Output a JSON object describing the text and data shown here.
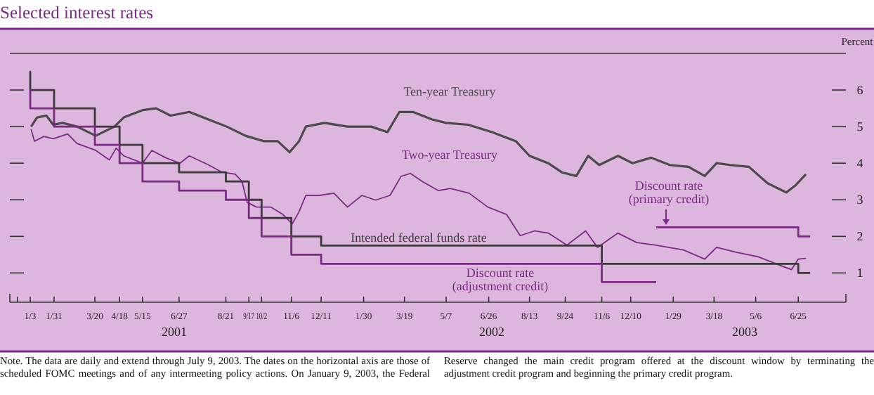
{
  "chart_data": {
    "type": "line",
    "title": "Selected interest rates",
    "ylabel": "Percent",
    "xlim": [
      "2000-12-10",
      "2003-08-20"
    ],
    "ylim": [
      0.2,
      7
    ],
    "yticks": [
      1,
      2,
      3,
      4,
      5,
      6
    ],
    "xticks": [
      {
        "value": "2000-12-19",
        "label": null
      },
      {
        "value": "2001-01-03",
        "label": "1/3"
      },
      {
        "value": "2001-01-31",
        "label": "1/31"
      },
      {
        "value": "2001-03-20",
        "label": "3/20"
      },
      {
        "value": "2001-04-18",
        "label": "4/18"
      },
      {
        "value": "2001-05-15",
        "label": "5/15"
      },
      {
        "value": "2001-06-27",
        "label": "6/27"
      },
      {
        "value": "2001-08-21",
        "label": "8/21"
      },
      {
        "value": "2001-09-17",
        "label": "9/17"
      },
      {
        "value": "2001-10-02",
        "label": "10/2"
      },
      {
        "value": "2001-11-06",
        "label": "11/6"
      },
      {
        "value": "2001-12-11",
        "label": "12/11"
      },
      {
        "value": "2002-01-30",
        "label": "1/30"
      },
      {
        "value": "2002-03-19",
        "label": "3/19"
      },
      {
        "value": "2002-05-07",
        "label": "5/7"
      },
      {
        "value": "2002-06-26",
        "label": "6/26"
      },
      {
        "value": "2002-08-13",
        "label": "8/13"
      },
      {
        "value": "2002-09-24",
        "label": "9/24"
      },
      {
        "value": "2002-11-06",
        "label": "11/6"
      },
      {
        "value": "2002-12-10",
        "label": "12/10"
      },
      {
        "value": "2003-01-29",
        "label": "1/29"
      },
      {
        "value": "2003-03-18",
        "label": "3/18"
      },
      {
        "value": "2003-05-06",
        "label": "5/6"
      },
      {
        "value": "2003-06-25",
        "label": "6/25"
      }
    ],
    "grid": false,
    "legend": false,
    "series": [
      {
        "name": "Ten-year Treasury",
        "type": "line",
        "color": "#4a4a4a",
        "x": [
          "2001-01-04",
          "2001-01-11",
          "2001-01-22",
          "2001-01-30",
          "2001-02-10",
          "2001-02-27",
          "2001-03-21",
          "2001-04-12",
          "2001-04-23",
          "2001-05-15",
          "2001-05-31",
          "2001-06-17",
          "2001-07-09",
          "2001-07-31",
          "2001-08-22",
          "2001-09-13",
          "2001-10-05",
          "2001-10-21",
          "2001-11-04",
          "2001-11-15",
          "2001-11-23",
          "2001-12-15",
          "2002-01-11",
          "2002-02-08",
          "2002-02-27",
          "2002-03-13",
          "2002-03-29",
          "2002-04-20",
          "2002-05-07",
          "2002-06-02",
          "2002-06-30",
          "2002-07-28",
          "2002-08-13",
          "2002-09-04",
          "2002-09-20",
          "2002-10-07",
          "2002-10-21",
          "2002-11-03",
          "2002-11-25",
          "2002-12-12",
          "2003-01-03",
          "2003-01-25",
          "2003-02-16",
          "2003-03-07",
          "2003-03-21",
          "2003-04-06",
          "2003-04-28",
          "2003-05-20",
          "2003-06-11",
          "2003-06-22",
          "2003-07-04"
        ],
        "values": [
          5.0,
          5.25,
          5.3,
          5.05,
          5.1,
          5.0,
          4.75,
          5.0,
          5.25,
          5.45,
          5.5,
          5.3,
          5.4,
          5.2,
          5.0,
          4.75,
          4.6,
          4.6,
          4.3,
          4.6,
          5.0,
          5.1,
          5.0,
          5.0,
          4.85,
          5.4,
          5.4,
          5.2,
          5.1,
          5.05,
          4.85,
          4.6,
          4.2,
          4.0,
          3.75,
          3.65,
          4.2,
          3.95,
          4.2,
          4.0,
          4.15,
          3.95,
          3.9,
          3.65,
          4.0,
          3.95,
          3.9,
          3.45,
          3.2,
          3.4,
          3.7
        ]
      },
      {
        "name": "Two-year Treasury",
        "type": "line",
        "color": "#7b2a84",
        "x": [
          "2001-01-04",
          "2001-01-08",
          "2001-01-19",
          "2001-01-30",
          "2001-02-16",
          "2001-02-27",
          "2001-03-21",
          "2001-04-06",
          "2001-04-14",
          "2001-04-23",
          "2001-05-15",
          "2001-05-26",
          "2001-06-11",
          "2001-06-28",
          "2001-07-09",
          "2001-07-31",
          "2001-08-16",
          "2001-09-01",
          "2001-09-09",
          "2001-09-15",
          "2001-09-26",
          "2001-10-13",
          "2001-10-27",
          "2001-11-07",
          "2001-11-15",
          "2001-11-23",
          "2001-12-09",
          "2001-12-26",
          "2002-01-11",
          "2002-01-28",
          "2002-02-13",
          "2002-03-02",
          "2002-03-15",
          "2002-03-26",
          "2002-04-09",
          "2002-04-28",
          "2002-05-12",
          "2002-06-03",
          "2002-06-25",
          "2002-07-17",
          "2002-08-02",
          "2002-08-19",
          "2002-09-04",
          "2002-09-26",
          "2002-10-18",
          "2002-11-01",
          "2002-11-25",
          "2002-12-17",
          "2003-01-09",
          "2003-02-10",
          "2003-03-07",
          "2003-03-21",
          "2003-04-12",
          "2003-05-09",
          "2003-05-31",
          "2003-06-17",
          "2003-06-25",
          "2003-07-04"
        ],
        "values": [
          4.93,
          4.6,
          4.73,
          4.67,
          4.8,
          4.54,
          4.35,
          4.09,
          4.41,
          4.2,
          4.0,
          4.35,
          4.15,
          4.0,
          4.2,
          3.96,
          3.76,
          3.7,
          3.5,
          2.93,
          2.8,
          2.8,
          2.6,
          2.34,
          2.67,
          3.12,
          3.12,
          3.18,
          2.8,
          3.12,
          2.99,
          3.12,
          3.64,
          3.72,
          3.5,
          3.25,
          3.31,
          3.18,
          2.8,
          2.6,
          2.02,
          2.15,
          2.09,
          1.76,
          2.15,
          1.7,
          2.09,
          1.83,
          1.76,
          1.63,
          1.38,
          1.7,
          1.57,
          1.44,
          1.24,
          1.09,
          1.38,
          1.4
        ]
      },
      {
        "name": "Intended federal funds rate",
        "type": "step",
        "color": "#3a3a3a",
        "x": [
          "2001-01-02",
          "2001-01-03",
          "2001-01-31",
          "2001-03-20",
          "2001-04-18",
          "2001-05-15",
          "2001-06-27",
          "2001-08-21",
          "2001-09-17",
          "2001-10-02",
          "2001-11-06",
          "2001-12-11",
          "2002-11-06",
          "2003-06-25",
          "2003-07-09"
        ],
        "values": [
          6.5,
          6.0,
          5.5,
          5.0,
          4.5,
          4.0,
          3.75,
          3.5,
          3.0,
          2.5,
          2.0,
          1.75,
          1.25,
          1.0,
          1.0
        ]
      },
      {
        "name": "Discount rate\n(adjustment credit)",
        "type": "step",
        "color": "#7b2a84",
        "x": [
          "2001-01-02",
          "2001-01-03",
          "2001-01-31",
          "2001-03-20",
          "2001-04-18",
          "2001-05-15",
          "2001-06-27",
          "2001-08-21",
          "2001-09-17",
          "2001-10-02",
          "2001-11-06",
          "2001-12-11",
          "2002-11-06",
          "2003-01-09"
        ],
        "values": [
          6.0,
          5.5,
          5.0,
          4.5,
          4.0,
          3.5,
          3.25,
          3.0,
          2.5,
          2.0,
          1.5,
          1.25,
          0.75,
          0.75
        ]
      },
      {
        "name": "Discount rate\n(primary credit)",
        "type": "step",
        "color": "#7b2a84",
        "x": [
          "2003-01-09",
          "2003-06-25",
          "2003-07-09"
        ],
        "values": [
          2.25,
          2.0,
          2.0
        ]
      }
    ],
    "annotations": [
      "2001",
      "2002",
      "2003",
      "Note. The data are daily and extend through July 9, 2003. The dates on the horizontal axis are those of scheduled FOMC meetings and of any intermeeting policy actions. On January 9, 2003, the Federal Reserve changed the main credit program offered at the discount window by terminating the adjustment credit program and beginning the primary credit program."
    ]
  }
}
